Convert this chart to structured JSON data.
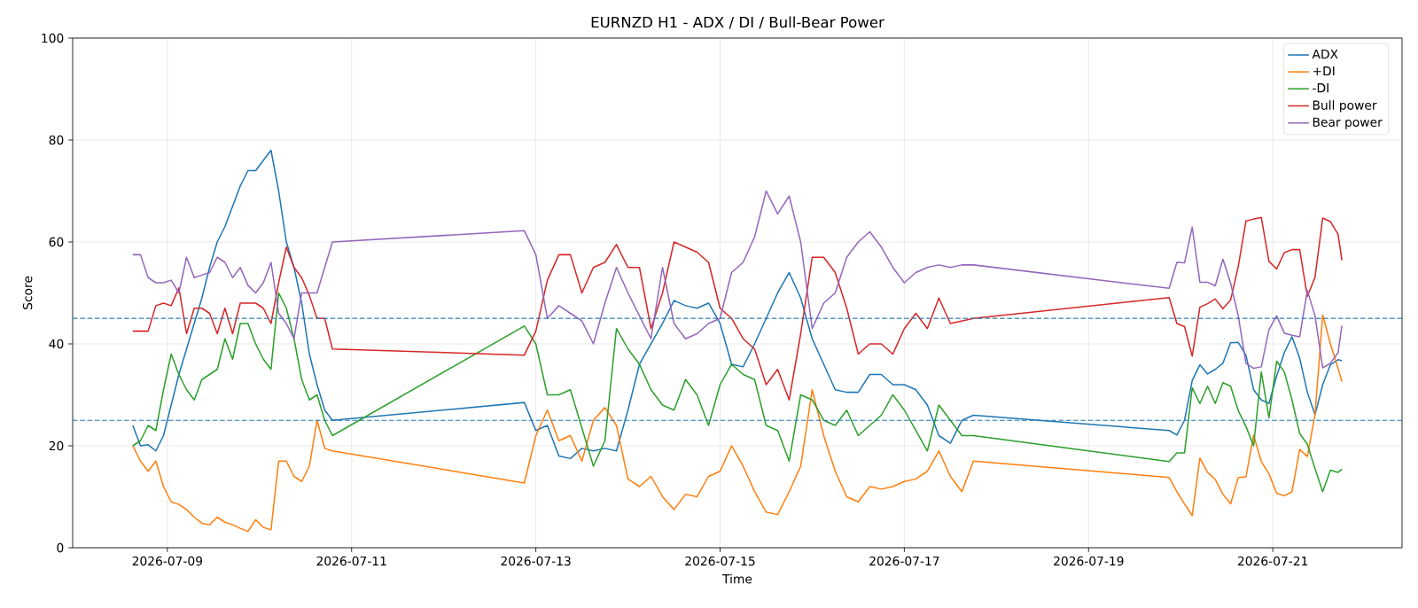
{
  "chart_data": {
    "type": "line",
    "title": "EURNZD H1 - ADX / DI / Bull-Bear Power",
    "xlabel": "Time",
    "ylabel": "Score",
    "x": [
      "2026-07-08T15:00",
      "2026-07-08T17:00",
      "2026-07-08T19:00",
      "2026-07-08T21:00",
      "2026-07-08T23:00",
      "2026-07-09T01:00",
      "2026-07-09T03:00",
      "2026-07-09T05:00",
      "2026-07-09T07:00",
      "2026-07-09T09:00",
      "2026-07-09T11:00",
      "2026-07-09T13:00",
      "2026-07-09T15:00",
      "2026-07-09T17:00",
      "2026-07-09T19:00",
      "2026-07-09T21:00",
      "2026-07-09T23:00",
      "2026-07-10T01:00",
      "2026-07-10T03:00",
      "2026-07-10T05:00",
      "2026-07-10T07:00",
      "2026-07-10T09:00",
      "2026-07-10T11:00",
      "2026-07-10T13:00",
      "2026-07-10T15:00",
      "2026-07-10T17:00",
      "2026-07-10T19:00",
      "2026-07-12T21:00",
      "2026-07-13T00:00",
      "2026-07-13T03:00",
      "2026-07-13T06:00",
      "2026-07-13T09:00",
      "2026-07-13T12:00",
      "2026-07-13T15:00",
      "2026-07-13T18:00",
      "2026-07-13T21:00",
      "2026-07-14T00:00",
      "2026-07-14T03:00",
      "2026-07-14T06:00",
      "2026-07-14T09:00",
      "2026-07-14T12:00",
      "2026-07-14T15:00",
      "2026-07-14T18:00",
      "2026-07-14T21:00",
      "2026-07-15T00:00",
      "2026-07-15T03:00",
      "2026-07-15T06:00",
      "2026-07-15T09:00",
      "2026-07-15T12:00",
      "2026-07-15T15:00",
      "2026-07-15T18:00",
      "2026-07-15T21:00",
      "2026-07-16T00:00",
      "2026-07-16T03:00",
      "2026-07-16T06:00",
      "2026-07-16T09:00",
      "2026-07-16T12:00",
      "2026-07-16T15:00",
      "2026-07-16T18:00",
      "2026-07-16T21:00",
      "2026-07-17T00:00",
      "2026-07-17T03:00",
      "2026-07-17T06:00",
      "2026-07-17T09:00",
      "2026-07-17T12:00",
      "2026-07-17T15:00",
      "2026-07-17T18:00",
      "2026-07-19T21:00",
      "2026-07-19T23:00",
      "2026-07-20T01:00",
      "2026-07-20T03:00",
      "2026-07-20T05:00",
      "2026-07-20T07:00",
      "2026-07-20T09:00",
      "2026-07-20T11:00",
      "2026-07-20T13:00",
      "2026-07-20T15:00",
      "2026-07-20T17:00",
      "2026-07-20T19:00",
      "2026-07-20T21:00",
      "2026-07-20T23:00",
      "2026-07-21T01:00",
      "2026-07-21T03:00",
      "2026-07-21T05:00",
      "2026-07-21T07:00",
      "2026-07-21T09:00",
      "2026-07-21T11:00",
      "2026-07-21T13:00",
      "2026-07-21T15:00",
      "2026-07-21T17:00",
      "2026-07-21T18:00"
    ],
    "series": [
      {
        "name": "ADX",
        "color": "#1f77b4",
        "values": [
          24,
          20,
          20.2,
          19,
          22,
          28,
          34,
          39,
          44,
          49,
          55,
          60,
          63,
          67,
          71,
          74,
          74,
          76,
          78,
          70,
          60,
          55,
          48,
          38,
          32,
          27,
          25,
          28.5,
          23,
          24,
          18,
          17.5,
          19.5,
          19,
          19.5,
          19,
          27,
          36,
          40,
          44,
          48.5,
          47.5,
          47,
          48,
          44,
          36,
          35.5,
          40,
          45,
          50,
          54,
          49,
          41,
          36,
          31,
          30.5,
          30.5,
          34,
          34,
          32,
          32,
          31,
          28,
          22,
          20.5,
          25,
          26,
          23,
          22.1,
          25,
          32.8,
          35.9,
          34.1,
          35,
          36.2,
          40.2,
          40.3,
          37.8,
          31,
          29,
          28.3,
          33.7,
          38.3,
          41.4,
          37.2,
          30.5,
          26.1,
          32,
          35.9,
          36.9,
          36.7
        ]
      },
      {
        "name": "+DI",
        "color": "#ff7f0e",
        "values": [
          20,
          17,
          15,
          17,
          12,
          9,
          8.5,
          7.5,
          6,
          4.8,
          4.5,
          6,
          5,
          4.5,
          3.8,
          3.2,
          5.5,
          4,
          3.5,
          17,
          17,
          14,
          13,
          16,
          25,
          19.5,
          19,
          12.7,
          22,
          27,
          21,
          22,
          17,
          25,
          27.5,
          24,
          13.5,
          12,
          14,
          10,
          7.5,
          10.5,
          10,
          14,
          15,
          20,
          16,
          11,
          7,
          6.5,
          11,
          16,
          31,
          22,
          15,
          10,
          9,
          12,
          11.5,
          12,
          13,
          13.5,
          15,
          19,
          14,
          11,
          17,
          13.8,
          11,
          8.6,
          6.3,
          17.6,
          14.8,
          13.4,
          10.5,
          8.6,
          13.8,
          13.9,
          22.1,
          16.9,
          14.5,
          10.7,
          10.2,
          11,
          19.3,
          17.9,
          26.2,
          45.7,
          40,
          35.2,
          32.6
        ]
      },
      {
        "name": "-DI",
        "color": "#2ca02c",
        "values": [
          20,
          21,
          24,
          23,
          31,
          38,
          34,
          31,
          29,
          33,
          34,
          35,
          41,
          37,
          44,
          44,
          40,
          37,
          35,
          50,
          47,
          41,
          33,
          29,
          30,
          25,
          22,
          43.5,
          40,
          30,
          30,
          31,
          23.5,
          16,
          21,
          43,
          39,
          36,
          31,
          28,
          27,
          33,
          30,
          24,
          32,
          36,
          34,
          33,
          24,
          23,
          17,
          30,
          29,
          25,
          24,
          27,
          22,
          24,
          26,
          30,
          27,
          23,
          19,
          28,
          25,
          22,
          22,
          16.9,
          18.6,
          18.6,
          31.4,
          28.3,
          31.7,
          28.3,
          32.4,
          31.7,
          26.9,
          23.8,
          20,
          34.5,
          25.5,
          36.6,
          34.5,
          29,
          22.4,
          20.3,
          15.5,
          11,
          15.2,
          14.8,
          15.4
        ]
      },
      {
        "name": "Bull power",
        "color": "#d62728",
        "values": [
          42.5,
          42.5,
          42.5,
          47.5,
          48,
          47.5,
          51,
          42,
          47,
          47,
          46,
          42,
          47,
          42,
          48,
          48,
          48,
          47,
          44,
          52,
          59,
          55,
          53,
          49.5,
          45,
          45,
          39,
          37.8,
          42.5,
          52.5,
          57.5,
          57.5,
          50,
          55,
          56,
          59.5,
          55,
          55,
          43,
          50,
          60,
          59,
          58,
          56,
          47,
          45,
          41,
          39,
          32,
          35,
          29,
          42,
          57,
          57,
          54,
          47,
          38,
          40,
          40,
          38,
          43,
          46,
          43,
          49,
          44,
          44.5,
          45,
          49.1,
          44,
          43.4,
          37.6,
          47.2,
          47.9,
          48.8,
          46.9,
          48.6,
          55.2,
          64.1,
          64.5,
          64.8,
          56.2,
          54.7,
          57.9,
          58.5,
          58.5,
          49.3,
          53.1,
          64.7,
          64,
          61.5,
          56.4
        ]
      },
      {
        "name": "Bear power",
        "color": "#9467bd",
        "values": [
          57.5,
          57.5,
          53,
          52,
          52,
          52.5,
          50,
          57,
          53,
          53.5,
          54,
          57,
          56,
          53,
          55,
          51.5,
          50,
          52,
          56,
          46,
          44,
          41,
          50,
          50,
          50,
          55,
          60,
          62.2,
          57.5,
          45,
          47.5,
          46,
          44.5,
          40,
          48,
          55,
          50,
          45.5,
          41,
          55,
          44,
          41,
          42,
          44,
          45,
          54,
          56,
          61,
          70,
          65.5,
          69,
          60,
          43,
          48,
          50,
          57,
          60,
          62,
          59,
          55,
          52,
          54,
          55,
          55.5,
          55,
          55.5,
          55.5,
          50.9,
          56,
          55.9,
          62.9,
          52.1,
          52.1,
          51.4,
          56.6,
          51.9,
          45.5,
          36.2,
          35.2,
          35.5,
          42.8,
          45.5,
          42.1,
          41.7,
          41.4,
          50.5,
          45.5,
          35.3,
          36.2,
          38.3,
          43.6
        ]
      }
    ],
    "ref_lines": [
      {
        "axis": "y",
        "value": 45,
        "color": "#1f77b4",
        "line_style": "dashed"
      },
      {
        "axis": "y",
        "value": 25,
        "color": "#1f77b4",
        "line_style": "dashed"
      }
    ],
    "xlim": [
      "2026-07-07T23:20",
      "2026-07-22T09:40"
    ],
    "ylim": [
      0,
      100
    ],
    "xticks": [
      "2026-07-09",
      "2026-07-11",
      "2026-07-13",
      "2026-07-15",
      "2026-07-17",
      "2026-07-19",
      "2026-07-21"
    ],
    "yticks": [
      0,
      20,
      40,
      60,
      80,
      100
    ],
    "grid": true,
    "legend": "top right"
  }
}
